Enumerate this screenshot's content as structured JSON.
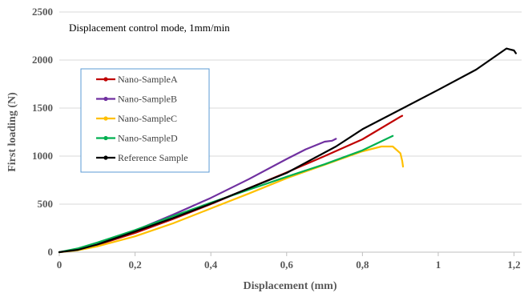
{
  "chart_data": {
    "type": "line",
    "title": "",
    "annotation": "Displacement control mode, 1mm/min",
    "xlabel": "Displacement (mm)",
    "ylabel": "First loading (N)",
    "xlim": [
      0,
      1.22
    ],
    "ylim": [
      0,
      2500
    ],
    "x_ticks": [
      "0",
      "0,2",
      "0,4",
      "0,6",
      "0,8",
      "1",
      "1,2"
    ],
    "x_tick_values": [
      0,
      0.2,
      0.4,
      0.6,
      0.8,
      1.0,
      1.2
    ],
    "y_ticks": [
      "0",
      "500",
      "1000",
      "1500",
      "2000",
      "2500"
    ],
    "y_tick_values": [
      0,
      500,
      1000,
      1500,
      2000,
      2500
    ],
    "grid": "horizontal",
    "legend_position": "left",
    "series": [
      {
        "name": "Nano-SampleA",
        "color": "#c00000",
        "x": [
          0,
          0.05,
          0.1,
          0.2,
          0.3,
          0.4,
          0.5,
          0.6,
          0.7,
          0.8,
          0.9,
          0.905
        ],
        "y": [
          0,
          25,
          75,
          200,
          345,
          500,
          665,
          830,
          1000,
          1175,
          1410,
          1420
        ]
      },
      {
        "name": "Nano-SampleB",
        "color": "#7030a0",
        "x": [
          0,
          0.05,
          0.1,
          0.2,
          0.3,
          0.4,
          0.5,
          0.6,
          0.65,
          0.7,
          0.72,
          0.73
        ],
        "y": [
          0,
          30,
          80,
          225,
          390,
          565,
          760,
          970,
          1070,
          1150,
          1160,
          1180
        ]
      },
      {
        "name": "Nano-SampleC",
        "color": "#ffc000",
        "x": [
          0,
          0.05,
          0.1,
          0.2,
          0.3,
          0.4,
          0.5,
          0.6,
          0.7,
          0.8,
          0.85,
          0.88,
          0.9,
          0.905,
          0.907
        ],
        "y": [
          0,
          20,
          60,
          165,
          300,
          455,
          610,
          770,
          910,
          1050,
          1100,
          1100,
          1030,
          950,
          890
        ]
      },
      {
        "name": "Nano-SampleD",
        "color": "#00b050",
        "x": [
          0,
          0.05,
          0.1,
          0.2,
          0.3,
          0.4,
          0.5,
          0.6,
          0.7,
          0.8,
          0.88
        ],
        "y": [
          0,
          40,
          100,
          230,
          375,
          515,
          650,
          785,
          915,
          1060,
          1210
        ]
      },
      {
        "name": "Reference Sample",
        "color": "#000000",
        "x": [
          0,
          0.05,
          0.1,
          0.2,
          0.3,
          0.4,
          0.5,
          0.6,
          0.73,
          0.8,
          1.0,
          1.1,
          1.18,
          1.2,
          1.205
        ],
        "y": [
          0,
          25,
          80,
          215,
          355,
          505,
          665,
          825,
          1100,
          1280,
          1690,
          1900,
          2120,
          2100,
          2070
        ]
      }
    ]
  }
}
